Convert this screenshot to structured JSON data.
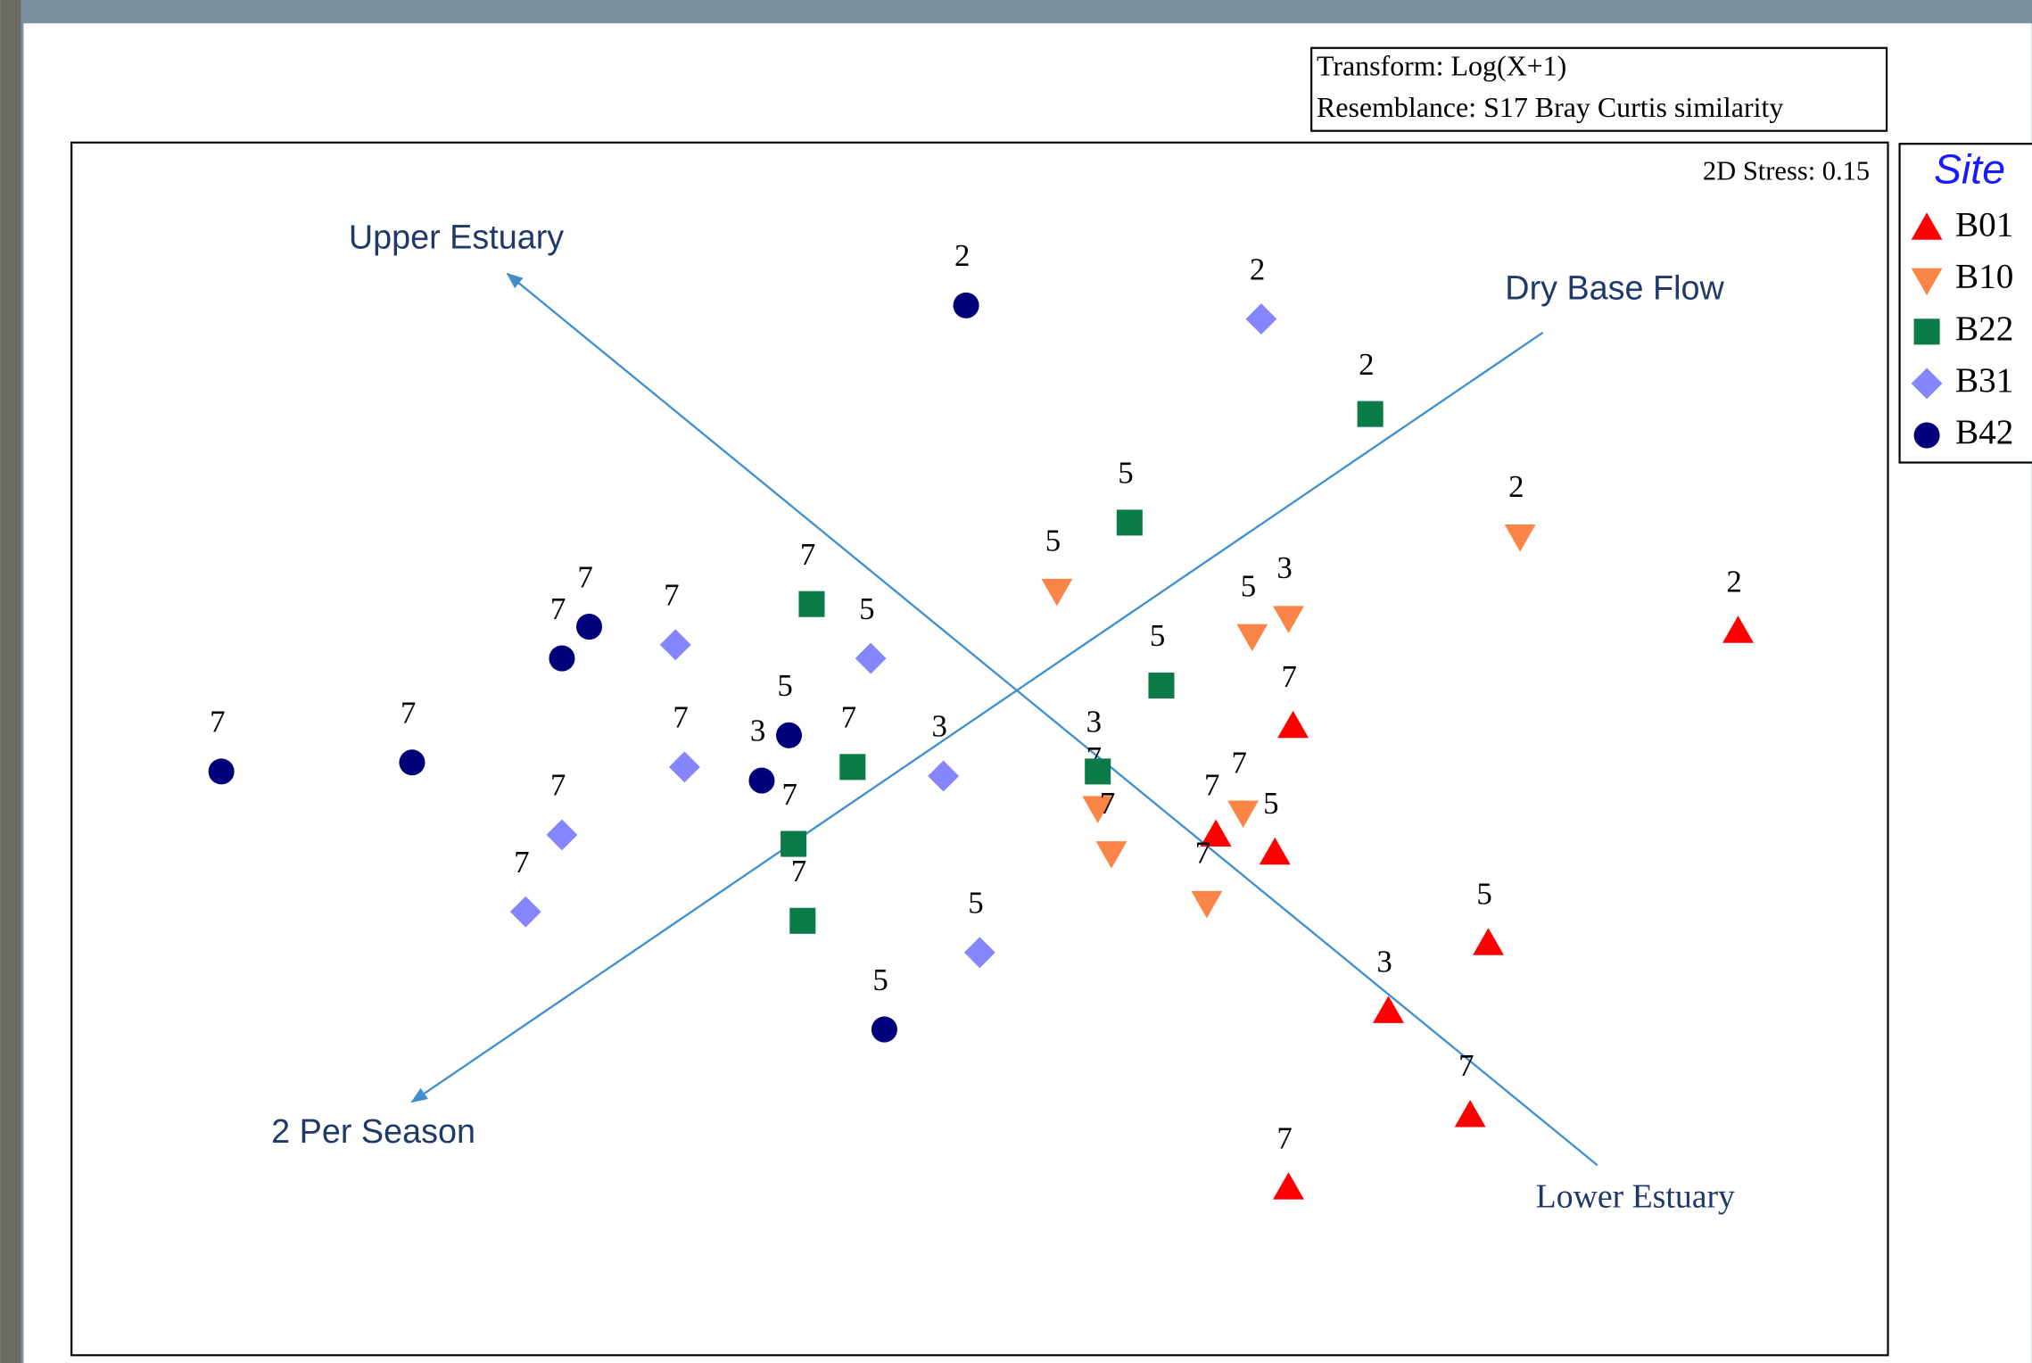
{
  "chart_data": {
    "type": "scatter",
    "transform": "Transform: Log(X+1)",
    "resemblance": "Resemblance: S17 Bray Curtis similarity",
    "stress": "2D Stress: 0.15",
    "legend_title": "Site",
    "xlim": [
      -2,
      2
    ],
    "ylim": [
      -1.34,
      1.34
    ],
    "series": [
      {
        "name": "B01",
        "color": "#ff0000",
        "marker": "triangle-up",
        "x": [
          1.67,
          0.69,
          0.52,
          0.65,
          1.12,
          0.9,
          1.08,
          0.68
        ],
        "y": [
          0.26,
          0.05,
          -0.19,
          -0.23,
          -0.43,
          -0.58,
          -0.81,
          -0.97
        ],
        "labels": [
          "2",
          "7",
          "7",
          "5",
          "5",
          "3",
          "7",
          "7"
        ]
      },
      {
        "name": "B10",
        "color": "#fb8546",
        "marker": "triangle-down",
        "x": [
          1.19,
          0.17,
          0.68,
          0.6,
          0.26,
          0.29,
          0.58,
          0.5
        ],
        "y": [
          0.47,
          0.35,
          0.29,
          0.25,
          -0.13,
          -0.23,
          -0.14,
          -0.34
        ],
        "labels": [
          "2",
          "5",
          "3",
          "5",
          "7",
          "7",
          "7",
          "7"
        ]
      },
      {
        "name": "B22",
        "color": "#0b7c47",
        "marker": "square",
        "x": [
          0.86,
          0.33,
          -0.37,
          0.4,
          -0.28,
          0.26,
          -0.41,
          -0.39
        ],
        "y": [
          0.74,
          0.5,
          0.32,
          0.14,
          -0.04,
          -0.05,
          -0.21,
          -0.38
        ],
        "labels": [
          "2",
          "5",
          "7",
          "5",
          "7",
          "3",
          "7",
          "7"
        ]
      },
      {
        "name": "B31",
        "color": "#8585ff",
        "marker": "diamond",
        "x": [
          0.62,
          -0.67,
          -0.24,
          -0.65,
          -0.08,
          -0.92,
          -1.0,
          0.0
        ],
        "y": [
          0.95,
          0.23,
          0.2,
          -0.04,
          -0.06,
          -0.19,
          -0.36,
          -0.45
        ],
        "labels": [
          "2",
          "7",
          "5",
          "7",
          "3",
          "7",
          "7",
          "5"
        ]
      },
      {
        "name": "B42",
        "color": "#00007a",
        "marker": "circle",
        "x": [
          -0.03,
          -0.86,
          -0.92,
          -0.42,
          -0.48,
          -1.25,
          -1.67,
          -0.21
        ],
        "y": [
          0.98,
          0.27,
          0.2,
          0.03,
          -0.07,
          -0.03,
          -0.05,
          -0.62
        ],
        "labels": [
          "2",
          "7",
          "7",
          "5",
          "3",
          "7",
          "7",
          "5"
        ]
      }
    ],
    "vectors": [
      {
        "start_label": "Lower Estuary",
        "end_label": "Upper Estuary",
        "x": [
          1.36,
          -1.04
        ],
        "y": [
          -0.92,
          1.05
        ]
      },
      {
        "start_label": "Dry Base Flow",
        "end_label": "2 Per Season",
        "x": [
          1.24,
          -1.25
        ],
        "y": [
          0.92,
          -0.78
        ]
      }
    ]
  }
}
